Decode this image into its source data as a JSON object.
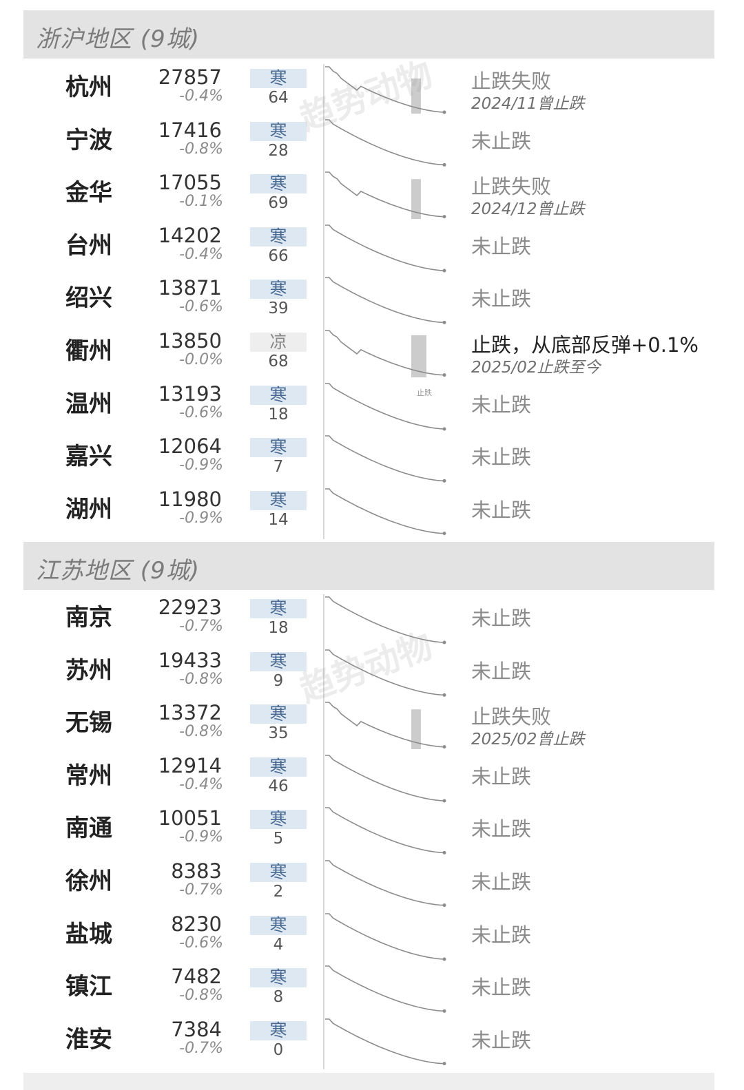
{
  "watermark": "趋势动物",
  "colors": {
    "header_bg": "#e3e3e3",
    "badge_cold": "#dde8f3",
    "badge_cool": "#eeeeee",
    "bar": "#cccccc",
    "line": "#8c8c8c"
  },
  "chart_data": [
    {
      "type": "table",
      "title": "浙沪地区 (9城)",
      "rows": [
        {
          "city": "杭州",
          "price": 27857,
          "change": "-0.4%",
          "temp": "寒",
          "score": 64,
          "status": "止跌失败",
          "note": "2024/11曾止跌",
          "bar": 0.75
        },
        {
          "city": "宁波",
          "price": 17416,
          "change": "-0.8%",
          "temp": "寒",
          "score": 28,
          "status": "未止跌",
          "note": "",
          "bar": 0
        },
        {
          "city": "金华",
          "price": 17055,
          "change": "-0.1%",
          "temp": "寒",
          "score": 69,
          "status": "止跌失败",
          "note": "2024/12曾止跌",
          "bar": 0.85
        },
        {
          "city": "台州",
          "price": 14202,
          "change": "-0.4%",
          "temp": "寒",
          "score": 66,
          "status": "未止跌",
          "note": "",
          "bar": 0
        },
        {
          "city": "绍兴",
          "price": 13871,
          "change": "-0.6%",
          "temp": "寒",
          "score": 39,
          "status": "未止跌",
          "note": "",
          "bar": 0
        },
        {
          "city": "衢州",
          "price": 13850,
          "change": "-0.0%",
          "temp": "凉",
          "score": 68,
          "status": "止跌，从底部反弹+0.1%",
          "note": "2025/02止跌至今",
          "bar": 0.9,
          "marker": "止跌"
        },
        {
          "city": "温州",
          "price": 13193,
          "change": "-0.6%",
          "temp": "寒",
          "score": 18,
          "status": "未止跌",
          "note": "",
          "bar": 0
        },
        {
          "city": "嘉兴",
          "price": 12064,
          "change": "-0.9%",
          "temp": "寒",
          "score": 7,
          "status": "未止跌",
          "note": "",
          "bar": 0
        },
        {
          "city": "湖州",
          "price": 11980,
          "change": "-0.9%",
          "temp": "寒",
          "score": 14,
          "status": "未止跌",
          "note": "",
          "bar": 0
        }
      ]
    },
    {
      "type": "table",
      "title": "江苏地区 (9城)",
      "rows": [
        {
          "city": "南京",
          "price": 22923,
          "change": "-0.7%",
          "temp": "寒",
          "score": 18,
          "status": "未止跌",
          "note": "",
          "bar": 0
        },
        {
          "city": "苏州",
          "price": 19433,
          "change": "-0.8%",
          "temp": "寒",
          "score": 9,
          "status": "未止跌",
          "note": "",
          "bar": 0
        },
        {
          "city": "无锡",
          "price": 13372,
          "change": "-0.8%",
          "temp": "寒",
          "score": 35,
          "status": "止跌失败",
          "note": "2025/02曾止跌",
          "bar": 0.85
        },
        {
          "city": "常州",
          "price": 12914,
          "change": "-0.4%",
          "temp": "寒",
          "score": 46,
          "status": "未止跌",
          "note": "",
          "bar": 0
        },
        {
          "city": "南通",
          "price": 10051,
          "change": "-0.9%",
          "temp": "寒",
          "score": 5,
          "status": "未止跌",
          "note": "",
          "bar": 0
        },
        {
          "city": "徐州",
          "price": 8383,
          "change": "-0.7%",
          "temp": "寒",
          "score": 2,
          "status": "未止跌",
          "note": "",
          "bar": 0
        },
        {
          "city": "盐城",
          "price": 8230,
          "change": "-0.6%",
          "temp": "寒",
          "score": 4,
          "status": "未止跌",
          "note": "",
          "bar": 0
        },
        {
          "city": "镇江",
          "price": 7482,
          "change": "-0.8%",
          "temp": "寒",
          "score": 8,
          "status": "未止跌",
          "note": "",
          "bar": 0
        },
        {
          "city": "淮安",
          "price": 7384,
          "change": "-0.7%",
          "temp": "寒",
          "score": 0,
          "status": "未止跌",
          "note": "",
          "bar": 0
        }
      ]
    }
  ]
}
